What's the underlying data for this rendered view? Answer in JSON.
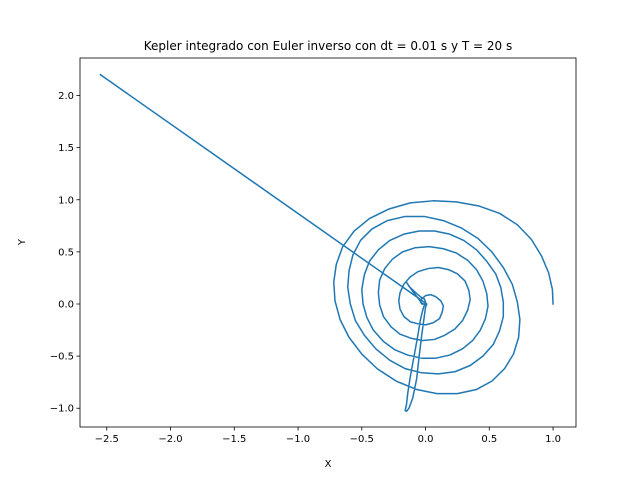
{
  "chart_data": {
    "type": "line",
    "title": "Kepler integrado con Euler inverso con dt = 0.01 s y T = 20 s",
    "xlabel": "X",
    "ylabel": "Y",
    "xlim": [
      -2.71,
      1.18
    ],
    "ylim": [
      -1.18,
      2.36
    ],
    "grid": false,
    "legend": "none",
    "x_ticks": [
      -2.5,
      -2.0,
      -1.5,
      -1.0,
      -0.5,
      0.0,
      0.5,
      1.0
    ],
    "x_tick_labels": [
      "−2.5",
      "−2.0",
      "−1.5",
      "−1.0",
      "−0.5",
      "0.0",
      "0.5",
      "1.0"
    ],
    "y_ticks": [
      -1.0,
      -0.5,
      0.0,
      0.5,
      1.0,
      1.5,
      2.0
    ],
    "y_tick_labels": [
      "−1.0",
      "−0.5",
      "0.0",
      "0.5",
      "1.0",
      "1.5",
      "2.0"
    ],
    "series": [
      {
        "color": "#1f77b4",
        "points": [
          [
            1.0,
            0.0
          ],
          [
            0.995,
            0.14
          ],
          [
            0.965,
            0.3
          ],
          [
            0.91,
            0.46
          ],
          [
            0.83,
            0.62
          ],
          [
            0.72,
            0.76
          ],
          [
            0.58,
            0.87
          ],
          [
            0.42,
            0.94
          ],
          [
            0.24,
            0.98
          ],
          [
            0.06,
            0.99
          ],
          [
            -0.12,
            0.97
          ],
          [
            -0.29,
            0.91
          ],
          [
            -0.44,
            0.82
          ],
          [
            -0.56,
            0.7
          ],
          [
            -0.65,
            0.55
          ],
          [
            -0.7,
            0.38
          ],
          [
            -0.72,
            0.21
          ],
          [
            -0.71,
            0.03
          ],
          [
            -0.67,
            -0.15
          ],
          [
            -0.6,
            -0.32
          ],
          [
            -0.5,
            -0.48
          ],
          [
            -0.38,
            -0.62
          ],
          [
            -0.23,
            -0.74
          ],
          [
            -0.07,
            -0.82
          ],
          [
            0.09,
            -0.86
          ],
          [
            0.25,
            -0.86
          ],
          [
            0.4,
            -0.82
          ],
          [
            0.52,
            -0.74
          ],
          [
            0.62,
            -0.62
          ],
          [
            0.69,
            -0.48
          ],
          [
            0.73,
            -0.32
          ],
          [
            0.74,
            -0.15
          ],
          [
            0.72,
            0.02
          ],
          [
            0.68,
            0.19
          ],
          [
            0.61,
            0.35
          ],
          [
            0.52,
            0.5
          ],
          [
            0.41,
            0.63
          ],
          [
            0.28,
            0.73
          ],
          [
            0.14,
            0.8
          ],
          [
            -0.01,
            0.84
          ],
          [
            -0.16,
            0.84
          ],
          [
            -0.3,
            0.8
          ],
          [
            -0.42,
            0.72
          ],
          [
            -0.51,
            0.61
          ],
          [
            -0.57,
            0.47
          ],
          [
            -0.6,
            0.32
          ],
          [
            -0.61,
            0.16
          ],
          [
            -0.59,
            0.0
          ],
          [
            -0.55,
            -0.16
          ],
          [
            -0.48,
            -0.3
          ],
          [
            -0.39,
            -0.43
          ],
          [
            -0.28,
            -0.54
          ],
          [
            -0.16,
            -0.62
          ],
          [
            -0.03,
            -0.66
          ],
          [
            0.1,
            -0.67
          ],
          [
            0.23,
            -0.65
          ],
          [
            0.35,
            -0.59
          ],
          [
            0.45,
            -0.5
          ],
          [
            0.53,
            -0.39
          ],
          [
            0.58,
            -0.26
          ],
          [
            0.61,
            -0.12
          ],
          [
            0.61,
            0.02
          ],
          [
            0.59,
            0.16
          ],
          [
            0.55,
            0.29
          ],
          [
            0.48,
            0.41
          ],
          [
            0.4,
            0.52
          ],
          [
            0.3,
            0.61
          ],
          [
            0.19,
            0.67
          ],
          [
            0.07,
            0.7
          ],
          [
            -0.05,
            0.7
          ],
          [
            -0.17,
            0.67
          ],
          [
            -0.28,
            0.61
          ],
          [
            -0.37,
            0.52
          ],
          [
            -0.44,
            0.41
          ],
          [
            -0.48,
            0.28
          ],
          [
            -0.5,
            0.14
          ],
          [
            -0.49,
            0.0
          ],
          [
            -0.46,
            -0.13
          ],
          [
            -0.41,
            -0.25
          ],
          [
            -0.33,
            -0.36
          ],
          [
            -0.24,
            -0.44
          ],
          [
            -0.14,
            -0.49
          ],
          [
            -0.03,
            -0.52
          ],
          [
            0.08,
            -0.52
          ],
          [
            0.19,
            -0.49
          ],
          [
            0.29,
            -0.43
          ],
          [
            0.37,
            -0.35
          ],
          [
            0.43,
            -0.25
          ],
          [
            0.47,
            -0.14
          ],
          [
            0.49,
            -0.02
          ],
          [
            0.48,
            0.1
          ],
          [
            0.45,
            0.22
          ],
          [
            0.4,
            0.33
          ],
          [
            0.33,
            0.42
          ],
          [
            0.24,
            0.49
          ],
          [
            0.14,
            0.53
          ],
          [
            0.03,
            0.55
          ],
          [
            -0.08,
            0.54
          ],
          [
            -0.18,
            0.5
          ],
          [
            -0.26,
            0.43
          ],
          [
            -0.32,
            0.34
          ],
          [
            -0.36,
            0.23
          ],
          [
            -0.37,
            0.11
          ],
          [
            -0.36,
            -0.01
          ],
          [
            -0.33,
            -0.12
          ],
          [
            -0.27,
            -0.22
          ],
          [
            -0.2,
            -0.29
          ],
          [
            -0.11,
            -0.33
          ],
          [
            -0.02,
            -0.35
          ],
          [
            0.07,
            -0.34
          ],
          [
            0.15,
            -0.3
          ],
          [
            0.23,
            -0.24
          ],
          [
            0.29,
            -0.16
          ],
          [
            0.33,
            -0.06
          ],
          [
            0.35,
            0.04
          ],
          [
            0.34,
            0.13
          ],
          [
            0.31,
            0.22
          ],
          [
            0.25,
            0.29
          ],
          [
            0.18,
            0.33
          ],
          [
            0.1,
            0.35
          ],
          [
            0.02,
            0.34
          ],
          [
            -0.06,
            0.31
          ],
          [
            -0.12,
            0.26
          ],
          [
            -0.17,
            0.19
          ],
          [
            -0.2,
            0.11
          ],
          [
            -0.21,
            0.03
          ],
          [
            -0.2,
            -0.05
          ],
          [
            -0.17,
            -0.12
          ],
          [
            -0.12,
            -0.17
          ],
          [
            -0.06,
            -0.19
          ],
          [
            0.0,
            -0.2
          ],
          [
            0.06,
            -0.18
          ],
          [
            0.11,
            -0.14
          ],
          [
            0.13,
            -0.08
          ],
          [
            0.14,
            -0.02
          ],
          [
            0.12,
            0.03
          ],
          [
            0.08,
            0.07
          ],
          [
            0.04,
            0.09
          ],
          [
            0.0,
            0.08
          ],
          [
            -0.03,
            0.05
          ],
          [
            -0.04,
            0.02
          ],
          [
            -0.03,
            0.0
          ],
          [
            0.01,
            0.0
          ],
          [
            0.0,
            -0.01
          ],
          [
            -0.03,
            0.01
          ],
          [
            -0.1,
            0.12
          ],
          [
            -0.15,
            0.21
          ],
          [
            -0.13,
            0.17
          ],
          [
            -0.07,
            0.1
          ],
          [
            -0.03,
            0.06
          ],
          [
            -0.01,
            0.05
          ],
          [
            0.0,
            0.02
          ],
          [
            -0.02,
            -0.05
          ],
          [
            -0.04,
            -0.15
          ],
          [
            -0.06,
            -0.3
          ],
          [
            -0.09,
            -0.5
          ],
          [
            -0.12,
            -0.7
          ],
          [
            -0.14,
            -0.86
          ],
          [
            -0.15,
            -0.97
          ],
          [
            -0.16,
            -1.02
          ],
          [
            -0.15,
            -1.03
          ],
          [
            -0.13,
            -1.0
          ],
          [
            -0.1,
            -0.9
          ],
          [
            -0.07,
            -0.72
          ],
          [
            -0.05,
            -0.5
          ],
          [
            -0.03,
            -0.3
          ],
          [
            -0.01,
            -0.12
          ],
          [
            0.0,
            -0.03
          ],
          [
            0.01,
            0.0
          ],
          [
            -2.55,
            2.2
          ]
        ]
      }
    ]
  }
}
